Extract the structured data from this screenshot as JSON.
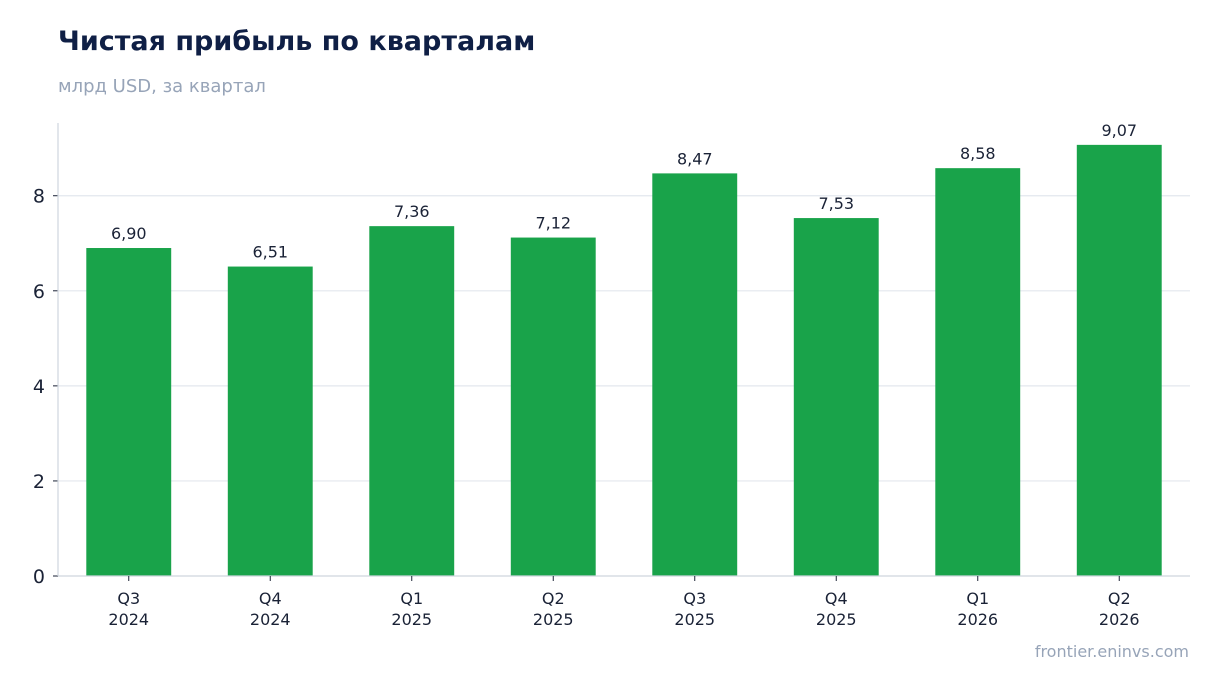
{
  "title": "Чистая прибыль по кварталам",
  "subtitle": "млрд USD, за квартал",
  "source": "frontier.eninvs.com",
  "colors": {
    "bar": "#19a34a",
    "grid": "#e3e7ee",
    "axis": "#cfd5de",
    "title": "#0f1f45",
    "muted": "#97a4b8"
  },
  "chart_data": {
    "type": "bar",
    "categories": [
      [
        "Q3",
        "2024"
      ],
      [
        "Q4",
        "2024"
      ],
      [
        "Q1",
        "2025"
      ],
      [
        "Q2",
        "2025"
      ],
      [
        "Q3",
        "2025"
      ],
      [
        "Q4",
        "2025"
      ],
      [
        "Q1",
        "2026"
      ],
      [
        "Q2",
        "2026"
      ]
    ],
    "values": [
      6.9,
      6.51,
      7.36,
      7.12,
      8.47,
      7.53,
      8.58,
      9.07
    ],
    "value_labels": [
      "6,90",
      "6,51",
      "7,36",
      "7,12",
      "8,47",
      "7,53",
      "8,58",
      "9,07"
    ],
    "yticks": [
      0,
      2,
      4,
      6,
      8
    ],
    "ylim": [
      0,
      9.53
    ],
    "grid": true,
    "legend": "none"
  }
}
